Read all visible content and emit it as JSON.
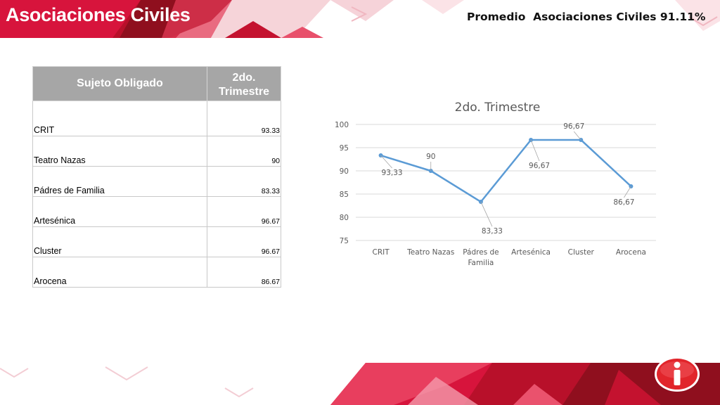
{
  "header": {
    "title": "Asociaciones Civiles",
    "average_text": "Promedio  Asociaciones Civiles 91.11%"
  },
  "table": {
    "headers": [
      "Sujeto Obligado",
      "2do. Trimestre"
    ],
    "rows": [
      {
        "name": "CRIT",
        "value": "93.33"
      },
      {
        "name": "Teatro Nazas",
        "value": "90"
      },
      {
        "name": "Pádres de Familia",
        "value": "83.33"
      },
      {
        "name": "Artesénica",
        "value": "96.67"
      },
      {
        "name": "Cluster",
        "value": "96.67"
      },
      {
        "name": "Arocena",
        "value": "86.67"
      }
    ]
  },
  "chart_data": {
    "type": "line",
    "title": "2do. Trimestre",
    "categories": [
      "CRIT",
      "Teatro Nazas",
      "Pádres de Familia",
      "Artesénica",
      "Cluster",
      "Arocena"
    ],
    "series": [
      {
        "values": [
          93.33,
          90,
          83.33,
          96.67,
          96.67,
          86.67
        ]
      }
    ],
    "data_labels": [
      "93,33",
      "90",
      "83,33",
      "96,67",
      "96,67",
      "86,67"
    ],
    "y_ticks": [
      "75",
      "80",
      "85",
      "90",
      "95",
      "100"
    ],
    "ylim": [
      75,
      100
    ],
    "grid": true,
    "legend": "none",
    "line_color": "#5b9bd5"
  },
  "colors": {
    "brand_red": "#d7143c",
    "brand_dark_red": "#8f0f1e",
    "header_gray": "#a6a6a6"
  },
  "icons": {
    "logo": "info-icon"
  }
}
